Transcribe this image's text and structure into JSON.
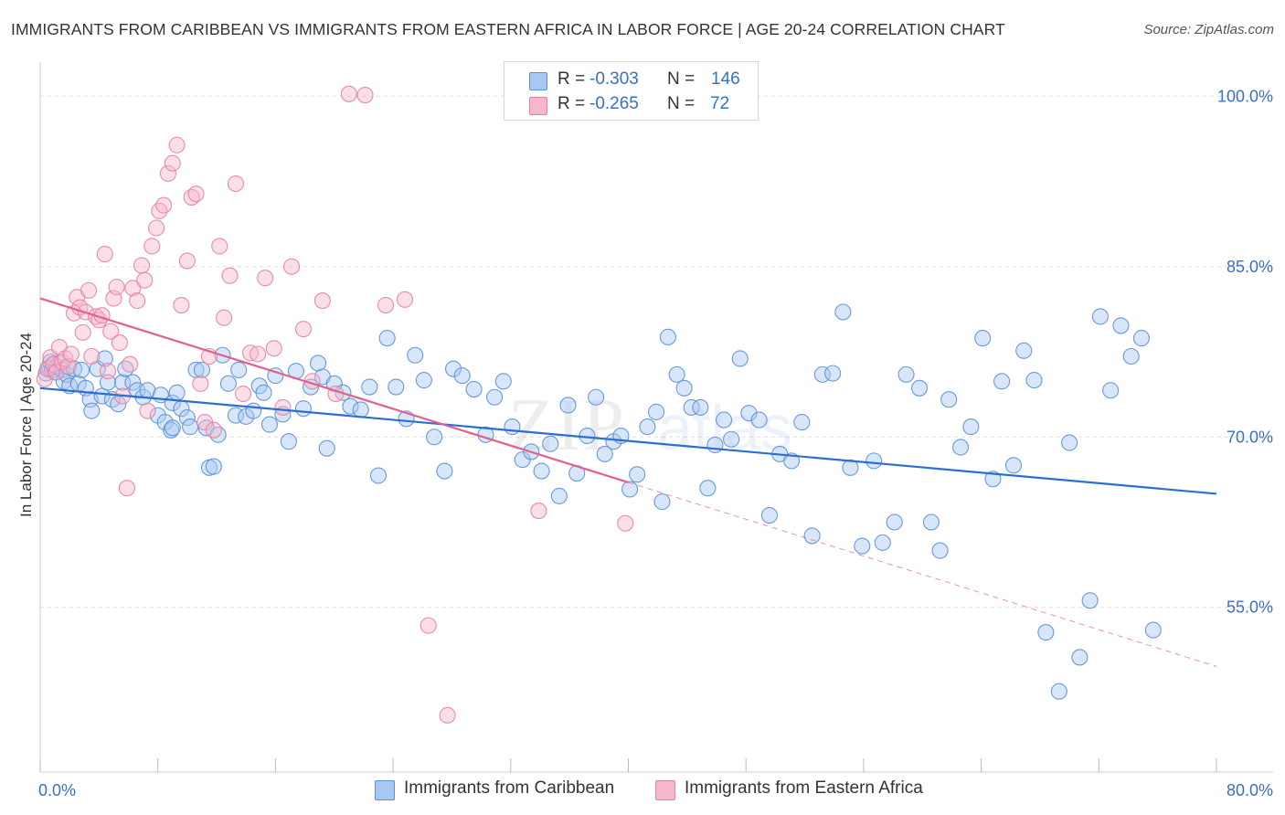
{
  "header": {
    "title": "IMMIGRANTS FROM CARIBBEAN VS IMMIGRANTS FROM EASTERN AFRICA IN LABOR FORCE | AGE 20-24 CORRELATION CHART",
    "source": "Source: ZipAtlas.com"
  },
  "legend": {
    "rows": [
      {
        "r_label": "R =",
        "r_value": "-0.303",
        "n_label": "N =",
        "n_value": "146"
      },
      {
        "r_label": "R =",
        "r_value": "-0.265",
        "n_label": "N =",
        "n_value": "72"
      }
    ],
    "bottom": [
      {
        "label": "Immigrants from Caribbean"
      },
      {
        "label": "Immigrants from Eastern Africa"
      }
    ]
  },
  "watermark": {
    "text_a": "ZIP",
    "text_b": "atlas"
  },
  "colors": {
    "caribbean_fill": "#a9c8f1",
    "caribbean_stroke": "#5b8fd6",
    "caribbean_line": "#2b6fd0",
    "africa_fill": "#f6b7cb",
    "africa_stroke": "#e57fa3",
    "africa_line": "#e0618f",
    "grid": "#dddddd",
    "tick_label": "#3a6fc6"
  },
  "chart_data": {
    "type": "scatter",
    "title": "IMMIGRANTS FROM CARIBBEAN VS IMMIGRANTS FROM EASTERN AFRICA IN LABOR FORCE | AGE 20-24 CORRELATION CHART",
    "xlabel": "",
    "ylabel": "In Labor Force | Age 20-24",
    "xlim": [
      0,
      80
    ],
    "ylim": [
      40.5,
      103
    ],
    "x_tick_labels": [
      "0.0%",
      "80.0%"
    ],
    "y_ticks": [
      55,
      70,
      85,
      100
    ],
    "y_tick_labels": [
      "55.0%",
      "70.0%",
      "85.0%",
      "100.0%"
    ],
    "grid": true,
    "legend_position": "top-center",
    "series": [
      {
        "name": "Immigrants from Caribbean",
        "r": -0.303,
        "n": 146,
        "trend": {
          "x": [
            0,
            80
          ],
          "y": [
            74.3,
            65.0
          ],
          "dashed_from": null
        },
        "points": [
          [
            0.4,
            75.6
          ],
          [
            0.6,
            76.1
          ],
          [
            0.7,
            76.6
          ],
          [
            0.8,
            75.9
          ],
          [
            0.9,
            76.4
          ],
          [
            1.0,
            75.7
          ],
          [
            1.1,
            76.2
          ],
          [
            1.3,
            76.5
          ],
          [
            1.5,
            75.9
          ],
          [
            1.6,
            74.9
          ],
          [
            1.8,
            75.5
          ],
          [
            2.0,
            74.5
          ],
          [
            2.3,
            76.0
          ],
          [
            2.6,
            74.7
          ],
          [
            2.8,
            75.9
          ],
          [
            3.1,
            74.3
          ],
          [
            3.4,
            73.3
          ],
          [
            3.5,
            72.3
          ],
          [
            3.9,
            76.0
          ],
          [
            4.2,
            73.6
          ],
          [
            4.4,
            76.9
          ],
          [
            4.6,
            74.8
          ],
          [
            4.9,
            73.3
          ],
          [
            5.3,
            72.9
          ],
          [
            5.6,
            74.8
          ],
          [
            5.8,
            76.0
          ],
          [
            6.3,
            74.8
          ],
          [
            6.6,
            74.1
          ],
          [
            7.0,
            73.5
          ],
          [
            7.3,
            74.1
          ],
          [
            8.0,
            71.9
          ],
          [
            8.2,
            73.7
          ],
          [
            8.5,
            71.3
          ],
          [
            8.9,
            70.6
          ],
          [
            9.0,
            73.0
          ],
          [
            9.3,
            73.9
          ],
          [
            9.6,
            72.5
          ],
          [
            9.0,
            70.8
          ],
          [
            10.0,
            71.7
          ],
          [
            10.2,
            70.9
          ],
          [
            10.6,
            75.9
          ],
          [
            11.0,
            75.9
          ],
          [
            11.3,
            70.8
          ],
          [
            11.5,
            67.3
          ],
          [
            11.8,
            67.4
          ],
          [
            12.1,
            70.2
          ],
          [
            12.4,
            77.2
          ],
          [
            12.8,
            74.7
          ],
          [
            13.3,
            71.9
          ],
          [
            13.5,
            75.9
          ],
          [
            14.0,
            71.8
          ],
          [
            14.5,
            72.3
          ],
          [
            14.9,
            74.5
          ],
          [
            15.2,
            73.9
          ],
          [
            15.6,
            71.1
          ],
          [
            16.0,
            75.4
          ],
          [
            16.5,
            72.0
          ],
          [
            16.9,
            69.6
          ],
          [
            17.4,
            75.8
          ],
          [
            17.9,
            72.5
          ],
          [
            18.4,
            74.4
          ],
          [
            18.9,
            76.5
          ],
          [
            19.2,
            75.3
          ],
          [
            19.5,
            69.0
          ],
          [
            20.0,
            74.7
          ],
          [
            20.6,
            73.9
          ],
          [
            21.1,
            72.7
          ],
          [
            21.8,
            72.4
          ],
          [
            22.4,
            74.4
          ],
          [
            23.0,
            66.6
          ],
          [
            23.6,
            78.7
          ],
          [
            24.2,
            74.4
          ],
          [
            24.9,
            71.6
          ],
          [
            25.5,
            77.2
          ],
          [
            26.1,
            75.0
          ],
          [
            26.8,
            70.0
          ],
          [
            27.5,
            67.0
          ],
          [
            28.1,
            76.0
          ],
          [
            28.7,
            75.4
          ],
          [
            29.5,
            74.2
          ],
          [
            30.3,
            70.2
          ],
          [
            30.9,
            73.5
          ],
          [
            31.5,
            74.9
          ],
          [
            32.1,
            70.9
          ],
          [
            32.8,
            68.0
          ],
          [
            33.4,
            68.7
          ],
          [
            34.1,
            67.0
          ],
          [
            34.7,
            69.4
          ],
          [
            35.3,
            64.8
          ],
          [
            35.9,
            72.8
          ],
          [
            36.5,
            66.8
          ],
          [
            37.2,
            70.1
          ],
          [
            37.8,
            73.5
          ],
          [
            38.4,
            68.5
          ],
          [
            39.0,
            69.6
          ],
          [
            39.5,
            70.1
          ],
          [
            40.1,
            65.4
          ],
          [
            40.6,
            66.7
          ],
          [
            41.3,
            70.9
          ],
          [
            41.9,
            72.2
          ],
          [
            42.3,
            64.3
          ],
          [
            42.7,
            78.8
          ],
          [
            43.3,
            75.5
          ],
          [
            43.8,
            74.3
          ],
          [
            44.3,
            72.6
          ],
          [
            44.9,
            72.6
          ],
          [
            45.4,
            65.5
          ],
          [
            45.9,
            69.3
          ],
          [
            46.5,
            71.5
          ],
          [
            47.0,
            69.8
          ],
          [
            47.6,
            76.9
          ],
          [
            48.2,
            72.1
          ],
          [
            48.9,
            71.5
          ],
          [
            49.6,
            63.1
          ],
          [
            50.3,
            68.5
          ],
          [
            51.1,
            67.9
          ],
          [
            51.8,
            71.3
          ],
          [
            52.5,
            61.3
          ],
          [
            53.2,
            75.5
          ],
          [
            53.9,
            75.6
          ],
          [
            54.6,
            81.0
          ],
          [
            55.1,
            67.3
          ],
          [
            55.9,
            60.4
          ],
          [
            56.7,
            67.9
          ],
          [
            57.3,
            60.7
          ],
          [
            58.1,
            62.5
          ],
          [
            58.9,
            75.5
          ],
          [
            59.8,
            74.3
          ],
          [
            60.6,
            62.5
          ],
          [
            61.2,
            60.0
          ],
          [
            61.8,
            73.3
          ],
          [
            62.6,
            69.1
          ],
          [
            63.3,
            70.9
          ],
          [
            64.1,
            78.7
          ],
          [
            64.8,
            66.3
          ],
          [
            65.4,
            74.9
          ],
          [
            66.2,
            67.5
          ],
          [
            66.9,
            77.6
          ],
          [
            67.6,
            75.0
          ],
          [
            68.4,
            52.8
          ],
          [
            69.3,
            47.6
          ],
          [
            70.0,
            69.5
          ],
          [
            70.7,
            50.6
          ],
          [
            71.4,
            55.6
          ],
          [
            72.1,
            80.6
          ],
          [
            72.8,
            74.1
          ],
          [
            73.5,
            79.8
          ],
          [
            74.2,
            77.1
          ],
          [
            74.9,
            78.7
          ],
          [
            75.7,
            53.0
          ]
        ]
      },
      {
        "name": "Immigrants from Eastern Africa",
        "r": -0.265,
        "n": 72,
        "trend": {
          "x": [
            0,
            40,
            80
          ],
          "y": [
            82.2,
            66.0,
            49.8
          ],
          "dashed_from": 40
        },
        "points": [
          [
            0.3,
            75.1
          ],
          [
            0.5,
            76.0
          ],
          [
            0.7,
            77.0
          ],
          [
            0.9,
            76.4
          ],
          [
            1.1,
            75.7
          ],
          [
            1.3,
            77.9
          ],
          [
            1.5,
            76.6
          ],
          [
            1.7,
            76.9
          ],
          [
            1.9,
            76.2
          ],
          [
            2.1,
            77.3
          ],
          [
            2.3,
            80.9
          ],
          [
            2.5,
            82.3
          ],
          [
            2.7,
            81.4
          ],
          [
            2.9,
            79.2
          ],
          [
            3.1,
            81.0
          ],
          [
            3.3,
            82.9
          ],
          [
            3.5,
            77.1
          ],
          [
            3.8,
            80.6
          ],
          [
            4.0,
            80.3
          ],
          [
            4.2,
            80.7
          ],
          [
            4.4,
            86.1
          ],
          [
            4.6,
            75.8
          ],
          [
            4.8,
            79.3
          ],
          [
            5.0,
            82.2
          ],
          [
            5.2,
            83.2
          ],
          [
            5.4,
            78.3
          ],
          [
            5.6,
            73.6
          ],
          [
            5.9,
            65.5
          ],
          [
            6.1,
            76.4
          ],
          [
            6.3,
            83.1
          ],
          [
            6.6,
            82.0
          ],
          [
            6.9,
            85.1
          ],
          [
            7.1,
            83.8
          ],
          [
            7.3,
            72.3
          ],
          [
            7.6,
            86.8
          ],
          [
            7.9,
            88.4
          ],
          [
            8.1,
            89.9
          ],
          [
            8.4,
            90.4
          ],
          [
            8.7,
            93.2
          ],
          [
            9.0,
            94.1
          ],
          [
            9.3,
            95.7
          ],
          [
            9.6,
            81.6
          ],
          [
            10.0,
            85.5
          ],
          [
            10.3,
            91.1
          ],
          [
            10.6,
            91.4
          ],
          [
            10.9,
            74.7
          ],
          [
            11.2,
            71.3
          ],
          [
            11.5,
            77.1
          ],
          [
            11.8,
            70.6
          ],
          [
            12.2,
            86.8
          ],
          [
            12.5,
            80.5
          ],
          [
            12.9,
            84.2
          ],
          [
            13.3,
            92.3
          ],
          [
            13.8,
            73.8
          ],
          [
            14.3,
            77.4
          ],
          [
            14.8,
            77.3
          ],
          [
            15.3,
            84.0
          ],
          [
            15.9,
            77.8
          ],
          [
            16.5,
            72.6
          ],
          [
            17.1,
            85.0
          ],
          [
            17.9,
            79.5
          ],
          [
            18.5,
            74.9
          ],
          [
            19.2,
            82.0
          ],
          [
            20.1,
            73.8
          ],
          [
            21.0,
            100.2
          ],
          [
            22.1,
            100.1
          ],
          [
            23.5,
            81.6
          ],
          [
            24.8,
            82.1
          ],
          [
            26.4,
            53.4
          ],
          [
            27.7,
            45.5
          ],
          [
            33.9,
            63.5
          ],
          [
            39.8,
            62.4
          ]
        ]
      }
    ]
  }
}
